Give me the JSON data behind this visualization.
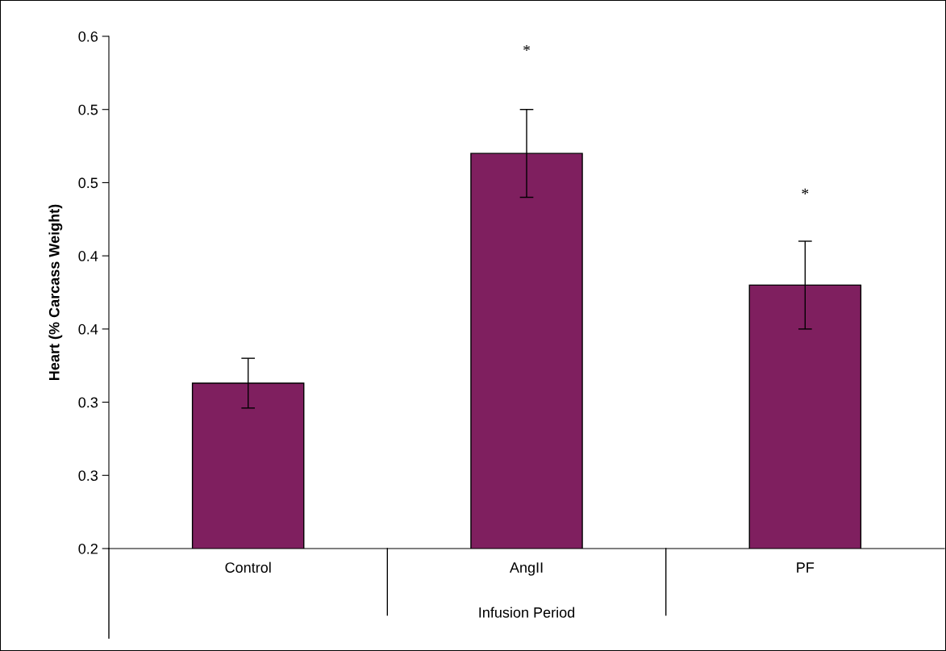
{
  "chart_data": {
    "type": "bar",
    "categories": [
      "Control",
      "AngII",
      "PF"
    ],
    "values": [
      0.313,
      0.47,
      0.38
    ],
    "errors": [
      0.017,
      0.03,
      0.03
    ],
    "color": "#7f1f5f",
    "xlabel": "Infusion Period",
    "ylabel": "Heart (% Carcass Weight)",
    "ylim": [
      0.2,
      0.55
    ],
    "yticks": [
      0.2,
      {
        "value": 0.25,
        "label": "0.3"
      },
      0.3,
      {
        "value": 0.35,
        "label": "0.4"
      },
      0.4,
      {
        "value": 0.45,
        "label": "0.5"
      },
      0.5,
      {
        "value": 0.55,
        "label": "0.6"
      }
    ],
    "annotations": [
      "*",
      "*"
    ],
    "grid": false,
    "legend": false
  }
}
